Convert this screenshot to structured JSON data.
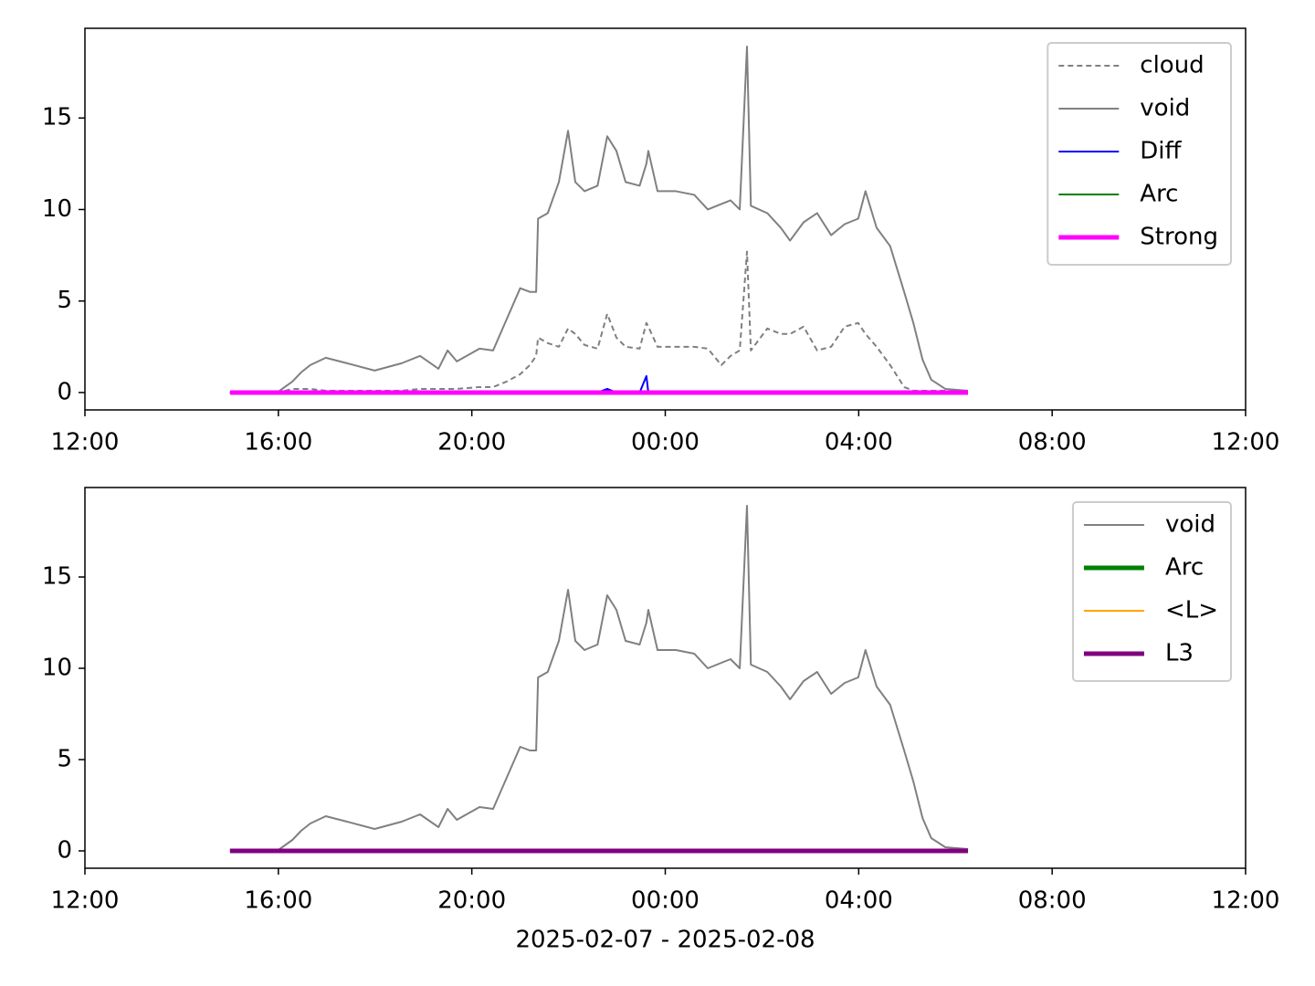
{
  "chart_data": [
    {
      "type": "line",
      "x": [
        15.0,
        16.0,
        16.29,
        16.47,
        16.66,
        16.98,
        17.42,
        17.99,
        18.55,
        18.93,
        19.31,
        19.5,
        19.69,
        20.16,
        20.44,
        20.72,
        21.0,
        21.2,
        21.33,
        21.37,
        21.57,
        21.8,
        21.99,
        22.14,
        22.33,
        22.6,
        22.8,
        22.99,
        23.18,
        23.47,
        23.61,
        23.65,
        23.84,
        24.22,
        24.6,
        24.88,
        25.16,
        25.35,
        25.54,
        25.69,
        25.77,
        26.11,
        26.39,
        26.58,
        26.86,
        27.14,
        27.43,
        27.71,
        27.99,
        28.14,
        28.37,
        28.65,
        28.94,
        29.13,
        29.32,
        29.5,
        29.79,
        30.26
      ],
      "series": [
        {
          "name": "cloud",
          "color": "#808080",
          "linestyle": "dashed",
          "linewidth": 2,
          "values": [
            0,
            0,
            0.2,
            0.2,
            0.2,
            0.1,
            0.1,
            0.1,
            0.1,
            0.2,
            0.2,
            0.2,
            0.2,
            0.3,
            0.3,
            0.6,
            1.0,
            1.5,
            2.0,
            3.0,
            2.7,
            2.5,
            3.5,
            3.2,
            2.6,
            2.4,
            4.3,
            3.0,
            2.5,
            2.4,
            3.8,
            3.6,
            2.5,
            2.5,
            2.5,
            2.4,
            1.5,
            2.0,
            2.3,
            7.7,
            2.3,
            3.5,
            3.2,
            3.2,
            3.6,
            2.3,
            2.5,
            3.6,
            3.8,
            3.2,
            2.5,
            1.5,
            0.3,
            0.1,
            0.1,
            0.1,
            0.1,
            0.05
          ]
        },
        {
          "name": "void",
          "color": "#808080",
          "linestyle": "solid",
          "linewidth": 2,
          "values": [
            0,
            0.05,
            0.6,
            1.1,
            1.5,
            1.9,
            1.6,
            1.2,
            1.6,
            2.0,
            1.3,
            2.3,
            1.7,
            2.4,
            2.3,
            4.0,
            5.7,
            5.5,
            5.5,
            9.5,
            9.8,
            11.5,
            14.3,
            11.5,
            11.0,
            11.3,
            14.0,
            13.2,
            11.5,
            11.3,
            12.5,
            13.2,
            11.0,
            11.0,
            10.8,
            10.0,
            10.3,
            10.5,
            10.0,
            18.9,
            10.2,
            9.8,
            9.0,
            8.3,
            9.3,
            9.8,
            8.6,
            9.2,
            9.5,
            11.0,
            9.0,
            8.0,
            5.5,
            3.8,
            1.8,
            0.7,
            0.2,
            0.1
          ]
        },
        {
          "name": "Diff",
          "color": "#0000ff",
          "linestyle": "solid",
          "linewidth": 2,
          "values": [
            0,
            0,
            0,
            0,
            0,
            0,
            0,
            0,
            0,
            0,
            0,
            0,
            0,
            0,
            0,
            0,
            0,
            0,
            0,
            0,
            0,
            0,
            0,
            0,
            0,
            0,
            0.2,
            0,
            0,
            0,
            0.9,
            0,
            0,
            0,
            0,
            0,
            0,
            0,
            0,
            0,
            0,
            0,
            0,
            0,
            0,
            0,
            0,
            0,
            0,
            0,
            0,
            0,
            0,
            0,
            0,
            0,
            0,
            0
          ]
        },
        {
          "name": "Arc",
          "color": "#008000",
          "linestyle": "solid",
          "linewidth": 2,
          "values": [
            0,
            0,
            0,
            0,
            0,
            0,
            0,
            0,
            0,
            0,
            0,
            0,
            0,
            0,
            0,
            0,
            0,
            0,
            0,
            0,
            0,
            0,
            0,
            0,
            0,
            0,
            0,
            0,
            0,
            0,
            0,
            0,
            0,
            0,
            0,
            0,
            0,
            0,
            0,
            0,
            0,
            0,
            0,
            0,
            0,
            0,
            0,
            0,
            0,
            0,
            0,
            0,
            0,
            0,
            0,
            0,
            0,
            0
          ]
        },
        {
          "name": "Strong",
          "color": "#ff00ff",
          "linestyle": "solid",
          "linewidth": 5,
          "values": [
            0,
            0,
            0,
            0,
            0,
            0,
            0,
            0,
            0,
            0,
            0,
            0,
            0,
            0,
            0,
            0,
            0,
            0,
            0,
            0,
            0,
            0,
            0,
            0,
            0,
            0,
            0,
            0,
            0,
            0,
            0,
            0,
            0,
            0,
            0,
            0,
            0,
            0,
            0,
            0,
            0,
            0,
            0,
            0,
            0,
            0,
            0,
            0,
            0,
            0,
            0,
            0,
            0,
            0,
            0,
            0,
            0,
            0
          ]
        }
      ],
      "xlim": [
        12,
        36
      ],
      "xticks": [
        {
          "value": 12,
          "label": "12:00"
        },
        {
          "value": 16,
          "label": "16:00"
        },
        {
          "value": 20,
          "label": "20:00"
        },
        {
          "value": 24,
          "label": "00:00"
        },
        {
          "value": 28,
          "label": "04:00"
        },
        {
          "value": 32,
          "label": "08:00"
        },
        {
          "value": 36,
          "label": "12:00"
        }
      ],
      "ylim": [
        -0.95,
        19.9
      ],
      "yticks": [
        0,
        5,
        10,
        15
      ],
      "legend": "upper right"
    },
    {
      "type": "line",
      "x": [
        15.0,
        16.0,
        16.29,
        16.47,
        16.66,
        16.98,
        17.42,
        17.99,
        18.55,
        18.93,
        19.31,
        19.5,
        19.69,
        20.16,
        20.44,
        20.72,
        21.0,
        21.2,
        21.33,
        21.37,
        21.57,
        21.8,
        21.99,
        22.14,
        22.33,
        22.6,
        22.8,
        22.99,
        23.18,
        23.47,
        23.61,
        23.65,
        23.84,
        24.22,
        24.6,
        24.88,
        25.16,
        25.35,
        25.54,
        25.69,
        25.77,
        26.11,
        26.39,
        26.58,
        26.86,
        27.14,
        27.43,
        27.71,
        27.99,
        28.14,
        28.37,
        28.65,
        28.94,
        29.13,
        29.32,
        29.5,
        29.79,
        30.26
      ],
      "series": [
        {
          "name": "void",
          "color": "#808080",
          "linestyle": "solid",
          "linewidth": 2,
          "values": [
            0,
            0.05,
            0.6,
            1.1,
            1.5,
            1.9,
            1.6,
            1.2,
            1.6,
            2.0,
            1.3,
            2.3,
            1.7,
            2.4,
            2.3,
            4.0,
            5.7,
            5.5,
            5.5,
            9.5,
            9.8,
            11.5,
            14.3,
            11.5,
            11.0,
            11.3,
            14.0,
            13.2,
            11.5,
            11.3,
            12.5,
            13.2,
            11.0,
            11.0,
            10.8,
            10.0,
            10.3,
            10.5,
            10.0,
            18.9,
            10.2,
            9.8,
            9.0,
            8.3,
            9.3,
            9.8,
            8.6,
            9.2,
            9.5,
            11.0,
            9.0,
            8.0,
            5.5,
            3.8,
            1.8,
            0.7,
            0.2,
            0.1
          ]
        },
        {
          "name": "Arc",
          "color": "#008000",
          "linestyle": "solid",
          "linewidth": 5,
          "values": [
            0,
            0,
            0,
            0,
            0,
            0,
            0,
            0,
            0,
            0,
            0,
            0,
            0,
            0,
            0,
            0,
            0,
            0,
            0,
            0,
            0,
            0,
            0,
            0,
            0,
            0,
            0,
            0,
            0,
            0,
            0,
            0,
            0,
            0,
            0,
            0,
            0,
            0,
            0,
            0,
            0,
            0,
            0,
            0,
            0,
            0,
            0,
            0,
            0,
            0,
            0,
            0,
            0,
            0,
            0,
            0,
            0,
            0
          ]
        },
        {
          "name": "<L>",
          "color": "#ffa500",
          "linestyle": "solid",
          "linewidth": 2,
          "values": [
            0,
            0,
            0,
            0,
            0,
            0,
            0,
            0,
            0,
            0,
            0,
            0,
            0,
            0,
            0,
            0,
            0,
            0,
            0,
            0,
            0,
            0,
            0,
            0,
            0,
            0,
            0,
            0,
            0,
            0,
            0,
            0,
            0,
            0,
            0,
            0,
            0,
            0,
            0,
            0,
            0,
            0,
            0,
            0,
            0,
            0,
            0,
            0,
            0,
            0,
            0,
            0,
            0,
            0,
            0,
            0,
            0,
            0
          ]
        },
        {
          "name": "L3",
          "color": "#800080",
          "linestyle": "solid",
          "linewidth": 5,
          "values": [
            0,
            0,
            0,
            0,
            0,
            0,
            0,
            0,
            0,
            0,
            0,
            0,
            0,
            0,
            0,
            0,
            0,
            0,
            0,
            0,
            0,
            0,
            0,
            0,
            0,
            0,
            0,
            0,
            0,
            0,
            0,
            0,
            0,
            0,
            0,
            0,
            0,
            0,
            0,
            0,
            0,
            0,
            0,
            0,
            0,
            0,
            0,
            0,
            0,
            0,
            0,
            0,
            0,
            0,
            0,
            0,
            0,
            0
          ]
        }
      ],
      "xlim": [
        12,
        36
      ],
      "xticks": [
        {
          "value": 12,
          "label": "12:00"
        },
        {
          "value": 16,
          "label": "16:00"
        },
        {
          "value": 20,
          "label": "20:00"
        },
        {
          "value": 24,
          "label": "00:00"
        },
        {
          "value": 28,
          "label": "04:00"
        },
        {
          "value": 32,
          "label": "08:00"
        },
        {
          "value": 36,
          "label": "12:00"
        }
      ],
      "ylim": [
        -0.95,
        19.9
      ],
      "yticks": [
        0,
        5,
        10,
        15
      ],
      "xlabel": "2025-02-07 - 2025-02-08",
      "legend": "upper right"
    }
  ]
}
